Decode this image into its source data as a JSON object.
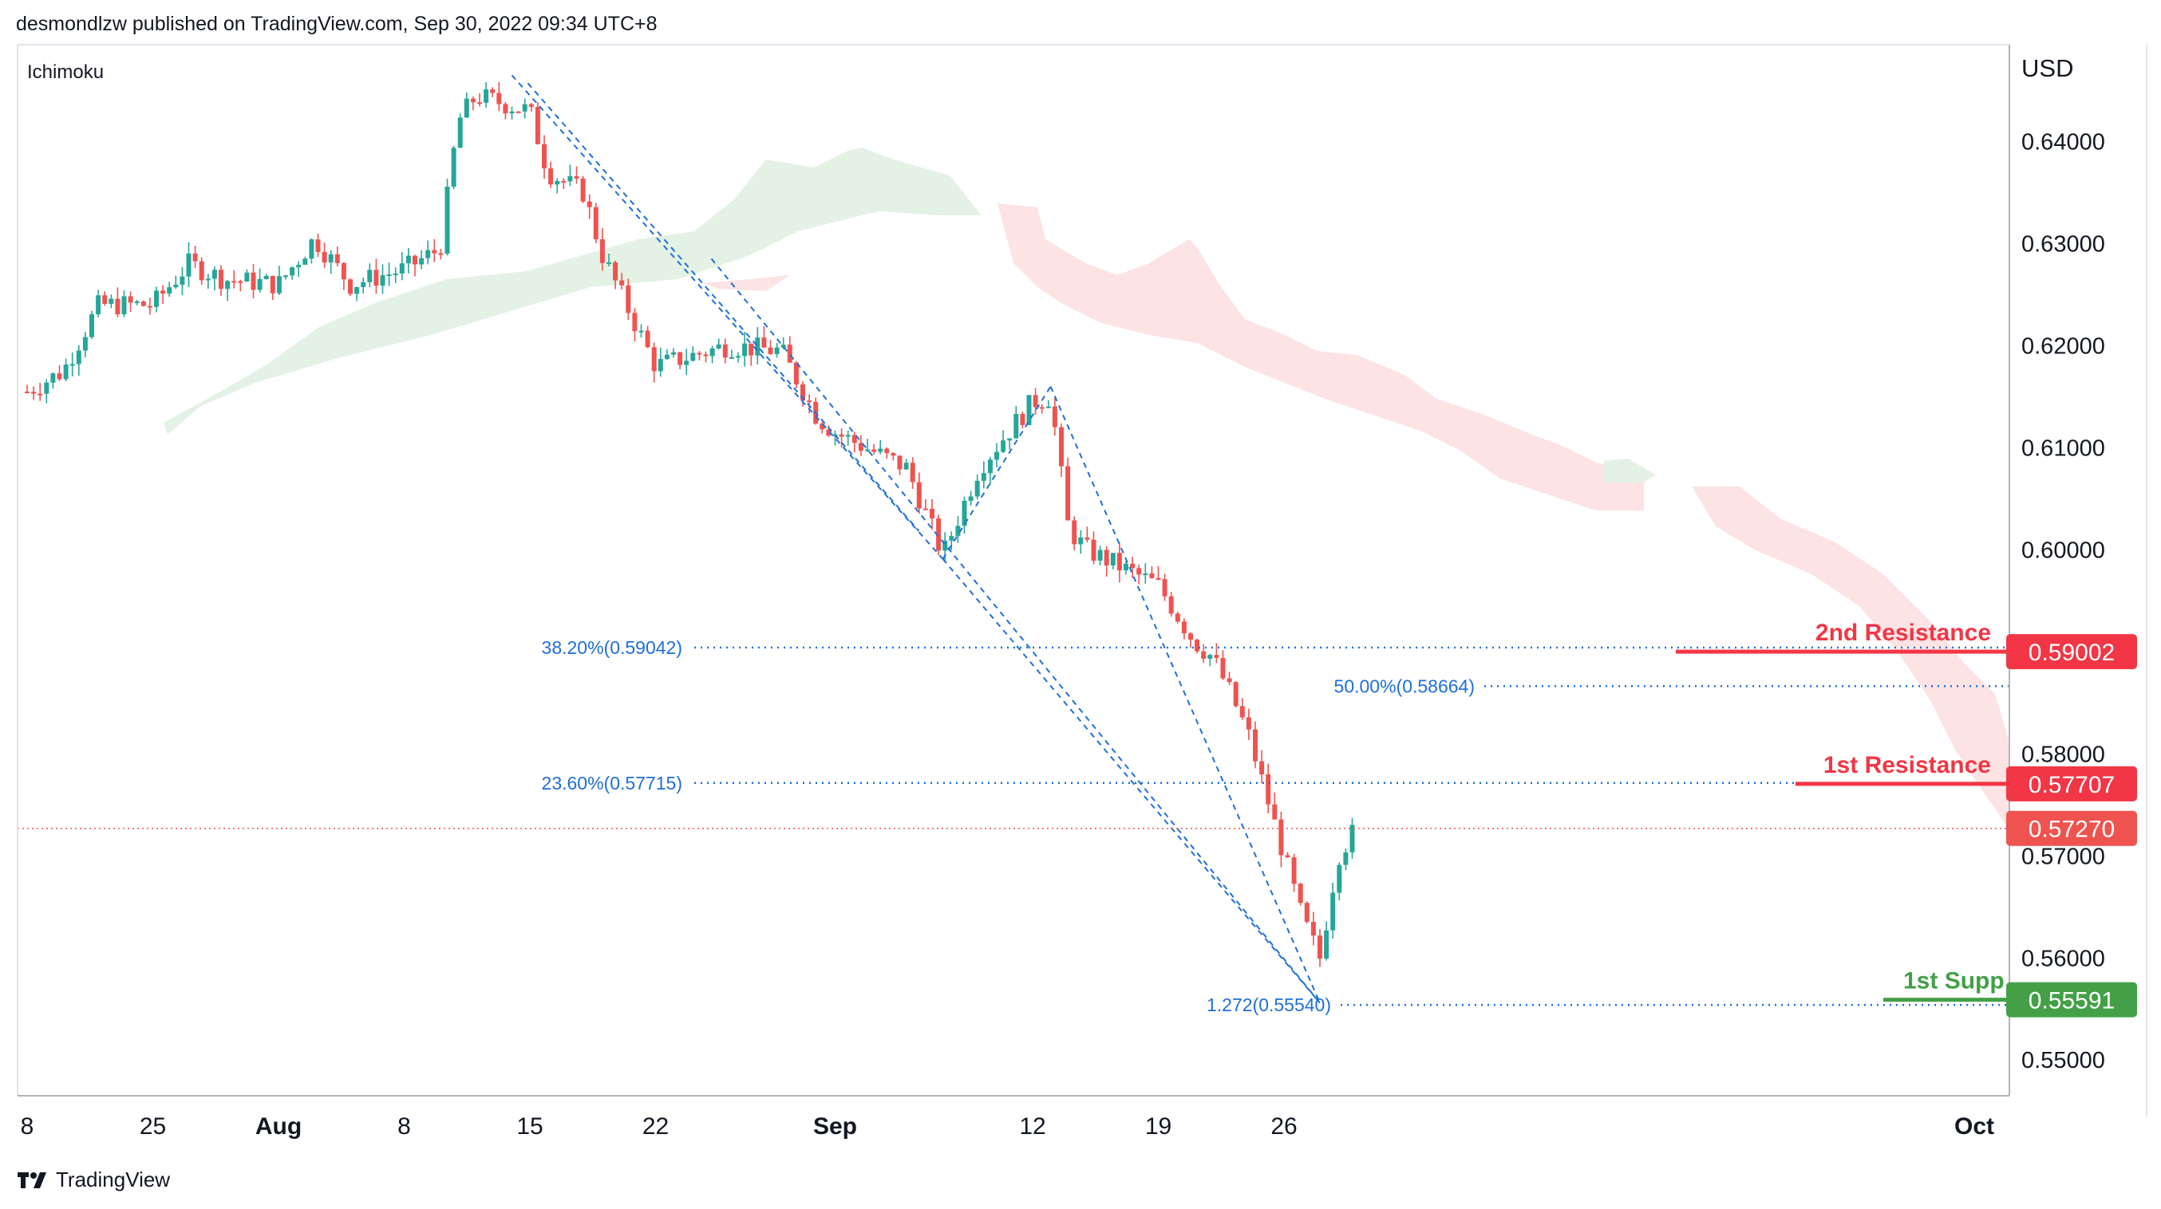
{
  "header": {
    "publish_line": "desmondlzw published on TradingView.com, Sep 30, 2022 09:34 UTC+8"
  },
  "footer": {
    "brand": "TradingView",
    "logo_icon": "tradingview-logo-icon"
  },
  "colors": {
    "up": "#26a69a",
    "down": "#ef5350",
    "resistance": "#f23645",
    "support": "#43a047",
    "fib": "#1e6fd9",
    "cloud_bear": "#fde3e3",
    "cloud_bull": "#e3f2e4"
  },
  "chart_data": {
    "type": "candlestick",
    "symbol_note": "Ichimoku",
    "currency_label": "USD",
    "x_tick_labels": [
      "8",
      "25",
      "Aug",
      "8",
      "15",
      "22",
      "Sep",
      "12",
      "19",
      "26",
      "Oct"
    ],
    "y_tick_labels": [
      "0.64000",
      "0.63000",
      "0.62000",
      "0.61000",
      "0.60000",
      "0.58000",
      "0.57000",
      "0.56000",
      "0.55000"
    ],
    "ylim": [
      0.5465,
      0.6495
    ],
    "current_price": 0.5727,
    "current_price_label": "0.57270",
    "levels": [
      {
        "name": "2nd Resistance",
        "value": 0.59002,
        "label": "0.59002",
        "kind": "resistance"
      },
      {
        "name": "1st Resistance",
        "value": 0.57707,
        "label": "0.57707",
        "kind": "resistance"
      },
      {
        "name": "1st Supp",
        "value": 0.55591,
        "label": "0.55591",
        "kind": "support"
      }
    ],
    "fib_levels": [
      {
        "label": "38.20%(0.59042)",
        "value": 0.59042
      },
      {
        "label": "50.00%(0.58664)",
        "value": 0.58664
      },
      {
        "label": "23.60%(0.57715)",
        "value": 0.57715
      },
      {
        "label": "1.272(0.55540)",
        "value": 0.5554
      }
    ],
    "trend_points": [
      {
        "date": "Aug 14",
        "value": 0.6465
      },
      {
        "date": "Sep 7",
        "value": 0.5991
      },
      {
        "date": "Sep 13",
        "value": 0.616
      },
      {
        "date": "Sep 28",
        "value": 0.5556
      }
    ],
    "close_path": [
      [
        "Jul 18",
        0.6155
      ],
      [
        "Jul 20",
        0.6175
      ],
      [
        "Jul 22",
        0.624
      ],
      [
        "Jul 25",
        0.624
      ],
      [
        "Jul 27",
        0.628
      ],
      [
        "Jul 29",
        0.6265
      ],
      [
        "Aug 1",
        0.626
      ],
      [
        "Aug 3",
        0.6305
      ],
      [
        "Aug 5",
        0.626
      ],
      [
        "Aug 8",
        0.6275
      ],
      [
        "Aug 10",
        0.6295
      ],
      [
        "Aug 11",
        0.642
      ],
      [
        "Aug 12",
        0.6445
      ],
      [
        "Aug 15",
        0.643
      ],
      [
        "Aug 16",
        0.637
      ],
      [
        "Aug 18",
        0.635
      ],
      [
        "Aug 19",
        0.629
      ],
      [
        "Aug 22",
        0.618
      ],
      [
        "Aug 24",
        0.619
      ],
      [
        "Aug 26",
        0.62
      ],
      [
        "Aug 29",
        0.6195
      ],
      [
        "Aug 31",
        0.613
      ],
      [
        "Sep 1",
        0.6115
      ],
      [
        "Sep 5",
        0.608
      ],
      [
        "Sep 7",
        0.5995
      ],
      [
        "Sep 9",
        0.608
      ],
      [
        "Sep 12",
        0.6145
      ],
      [
        "Sep 13",
        0.615
      ],
      [
        "Sep 14",
        0.602
      ],
      [
        "Sep 15",
        0.6
      ],
      [
        "Sep 19",
        0.5965
      ],
      [
        "Sep 21",
        0.591
      ],
      [
        "Sep 22",
        0.5895
      ],
      [
        "Sep 23",
        0.586
      ],
      [
        "Sep 24",
        0.582
      ],
      [
        "Sep 26",
        0.57
      ],
      [
        "Sep 27",
        0.564
      ],
      [
        "Sep 28",
        0.56
      ],
      [
        "Sep 29",
        0.57
      ],
      [
        "Sep 30",
        0.5727
      ]
    ]
  }
}
